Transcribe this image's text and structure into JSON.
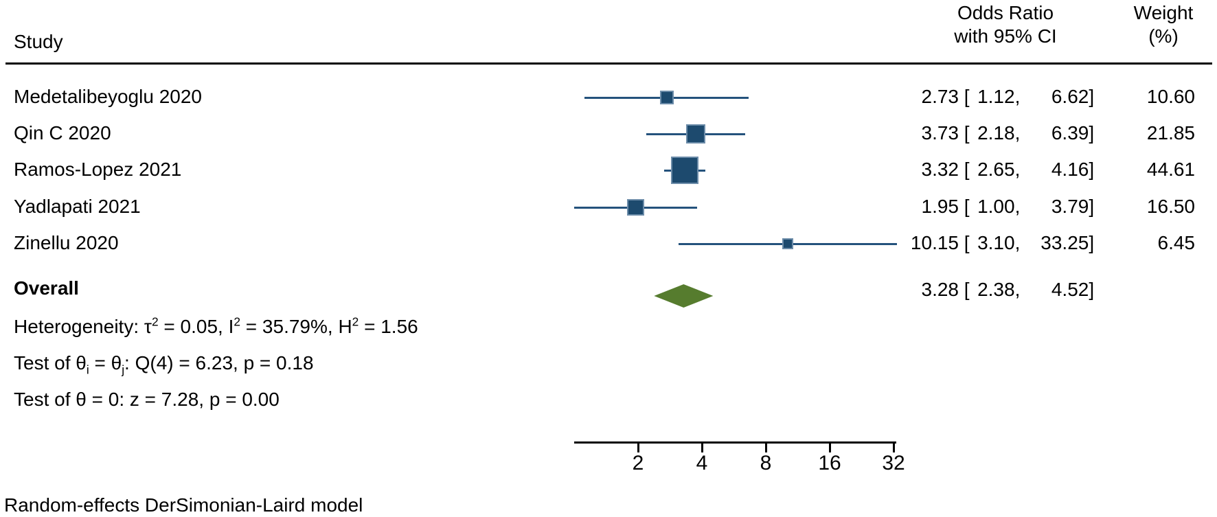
{
  "header": {
    "study_col": "Study",
    "or_col_line1": "Odds Ratio",
    "or_col_line2": "with 95% CI",
    "weight_col_line1": "Weight",
    "weight_col_line2": "(%)"
  },
  "chart_data": {
    "type": "forest",
    "effect_measure": "Odds Ratio",
    "x_axis": {
      "scale": "log2",
      "ticks": [
        2,
        4,
        8,
        16,
        32
      ],
      "range": [
        1,
        33.25
      ]
    },
    "studies": [
      {
        "name": "Medetalibeyoglu 2020",
        "or": 2.73,
        "ci_low": 1.12,
        "ci_high": 6.62,
        "weight": 10.6
      },
      {
        "name": "Qin C 2020",
        "or": 3.73,
        "ci_low": 2.18,
        "ci_high": 6.39,
        "weight": 21.85
      },
      {
        "name": "Ramos-Lopez 2021",
        "or": 3.32,
        "ci_low": 2.65,
        "ci_high": 4.16,
        "weight": 44.61
      },
      {
        "name": "Yadlapati 2021",
        "or": 1.95,
        "ci_low": 1.0,
        "ci_high": 3.79,
        "weight": 16.5
      },
      {
        "name": "Zinellu 2020",
        "or": 10.15,
        "ci_low": 3.1,
        "ci_high": 33.25,
        "weight": 6.45
      }
    ],
    "overall": {
      "name": "Overall",
      "or": 3.28,
      "ci_low": 2.38,
      "ci_high": 4.52
    },
    "marker_color": "#1d4a6e",
    "ci_line_color": "#24527c",
    "diamond_color": "#567c2e"
  },
  "stats": {
    "heterogeneity": [
      "Heterogeneity: τ",
      "2",
      " = 0.05, I",
      "2",
      " = 35.79%, H",
      "2",
      " = 1.56"
    ],
    "test_q": [
      "Test of θ",
      "i",
      " = θ",
      "j",
      ": Q(4) = 6.23, p = 0.18"
    ],
    "test_z": "Test of θ = 0: z = 7.28, p = 0.00"
  },
  "footer": "Random-effects DerSimonian-Laird model"
}
